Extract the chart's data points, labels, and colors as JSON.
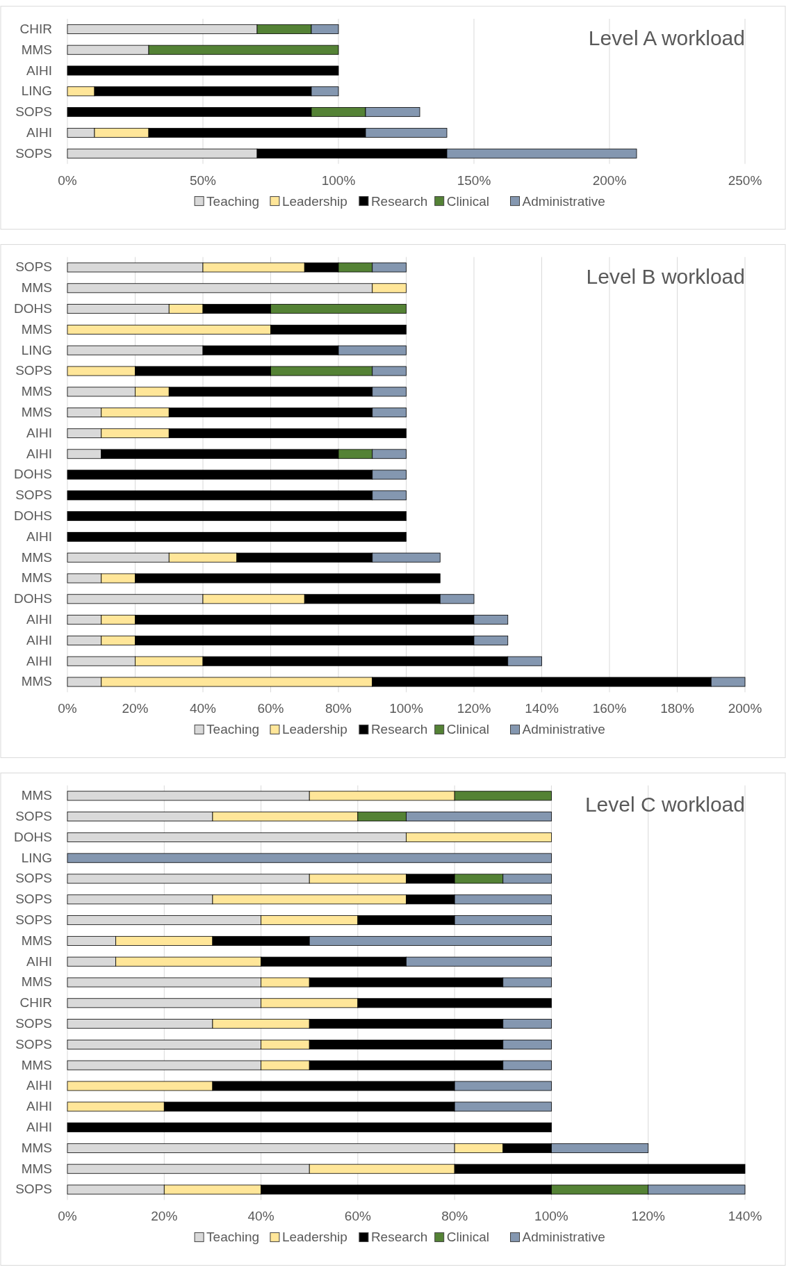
{
  "chart_data": [
    {
      "type": "bar",
      "orientation": "horizontal",
      "stacked": true,
      "title": "Level A workload",
      "categories": [
        "CHIR",
        "MMS",
        "AIHI",
        "LING",
        "SOPS",
        "AIHI",
        "SOPS"
      ],
      "series": [
        {
          "name": "Teaching",
          "color": "#d9d9d9",
          "values": [
            70,
            30,
            0,
            0,
            0,
            10,
            70
          ]
        },
        {
          "name": "Leadership",
          "color": "#ffe699",
          "values": [
            0,
            0,
            0,
            10,
            0,
            20,
            0
          ]
        },
        {
          "name": "Research",
          "color": "#000000",
          "values": [
            0,
            0,
            100,
            80,
            90,
            80,
            70
          ]
        },
        {
          "name": "Clinical",
          "color": "#548235",
          "values": [
            20,
            70,
            0,
            0,
            20,
            0,
            0
          ]
        },
        {
          "name": "Administrative",
          "color": "#8497b0",
          "values": [
            10,
            0,
            0,
            10,
            20,
            30,
            70
          ]
        }
      ],
      "xlim": [
        0,
        250
      ],
      "xticks": [
        {
          "value": 0,
          "label": "0%"
        },
        {
          "value": 50,
          "label": "50%"
        },
        {
          "value": 100,
          "label": "100%"
        },
        {
          "value": 150,
          "label": "150%"
        },
        {
          "value": 200,
          "label": "200%"
        },
        {
          "value": 250,
          "label": "250%"
        }
      ],
      "grid": "x",
      "legend": "bottom"
    },
    {
      "type": "bar",
      "orientation": "horizontal",
      "stacked": true,
      "title": "Level B workload",
      "categories": [
        "SOPS",
        "MMS",
        "DOHS",
        "MMS",
        "LING",
        "SOPS",
        "MMS",
        "MMS",
        "AIHI",
        "AIHI",
        "DOHS",
        "SOPS",
        "DOHS",
        "AIHI",
        "MMS",
        "MMS",
        "DOHS",
        "AIHI",
        "AIHI",
        "AIHI",
        "MMS"
      ],
      "series": [
        {
          "name": "Teaching",
          "color": "#d9d9d9",
          "values": [
            40,
            90,
            30,
            0,
            40,
            0,
            20,
            10,
            10,
            10,
            0,
            0,
            0,
            0,
            30,
            10,
            40,
            10,
            10,
            20,
            10
          ]
        },
        {
          "name": "Leadership",
          "color": "#ffe699",
          "values": [
            30,
            10,
            10,
            60,
            0,
            20,
            10,
            20,
            20,
            0,
            0,
            0,
            0,
            0,
            20,
            10,
            30,
            10,
            10,
            20,
            80
          ]
        },
        {
          "name": "Research",
          "color": "#000000",
          "values": [
            10,
            0,
            20,
            40,
            40,
            40,
            60,
            60,
            70,
            70,
            90,
            90,
            100,
            100,
            40,
            90,
            40,
            100,
            100,
            90,
            100
          ]
        },
        {
          "name": "Clinical",
          "color": "#548235",
          "values": [
            10,
            0,
            40,
            0,
            0,
            30,
            0,
            0,
            0,
            10,
            0,
            0,
            0,
            0,
            0,
            0,
            0,
            0,
            0,
            0,
            0
          ]
        },
        {
          "name": "Administrative",
          "color": "#8497b0",
          "values": [
            10,
            0,
            0,
            0,
            20,
            10,
            10,
            10,
            0,
            10,
            10,
            10,
            0,
            0,
            20,
            0,
            10,
            10,
            10,
            10,
            10
          ]
        }
      ],
      "xlim": [
        0,
        200
      ],
      "xticks": [
        {
          "value": 0,
          "label": "0%"
        },
        {
          "value": 20,
          "label": "20%"
        },
        {
          "value": 40,
          "label": "40%"
        },
        {
          "value": 60,
          "label": "60%"
        },
        {
          "value": 80,
          "label": "80%"
        },
        {
          "value": 100,
          "label": "100%"
        },
        {
          "value": 120,
          "label": "120%"
        },
        {
          "value": 140,
          "label": "140%"
        },
        {
          "value": 160,
          "label": "160%"
        },
        {
          "value": 180,
          "label": "180%"
        },
        {
          "value": 200,
          "label": "200%"
        }
      ],
      "grid": "x",
      "legend": "bottom"
    },
    {
      "type": "bar",
      "orientation": "horizontal",
      "stacked": true,
      "title": "Level C workload",
      "categories": [
        "MMS",
        "SOPS",
        "DOHS",
        "LING",
        "SOPS",
        "SOPS",
        "SOPS",
        "MMS",
        "AIHI",
        "MMS",
        "CHIR",
        "SOPS",
        "SOPS",
        "MMS",
        "AIHI",
        "AIHI",
        "AIHI",
        "MMS",
        "MMS",
        "SOPS"
      ],
      "series": [
        {
          "name": "Teaching",
          "color": "#d9d9d9",
          "values": [
            50,
            30,
            70,
            0,
            50,
            30,
            40,
            10,
            10,
            40,
            40,
            30,
            40,
            40,
            0,
            0,
            0,
            80,
            50,
            20
          ]
        },
        {
          "name": "Leadership",
          "color": "#ffe699",
          "values": [
            30,
            30,
            30,
            0,
            20,
            40,
            20,
            20,
            30,
            10,
            20,
            20,
            10,
            10,
            30,
            20,
            0,
            10,
            30,
            20
          ]
        },
        {
          "name": "Research",
          "color": "#000000",
          "values": [
            0,
            0,
            0,
            0,
            10,
            10,
            20,
            20,
            30,
            40,
            40,
            40,
            40,
            40,
            50,
            60,
            100,
            10,
            60,
            60
          ]
        },
        {
          "name": "Clinical",
          "color": "#548235",
          "values": [
            20,
            10,
            0,
            0,
            10,
            0,
            0,
            0,
            0,
            0,
            0,
            0,
            0,
            0,
            0,
            0,
            0,
            0,
            0,
            20
          ]
        },
        {
          "name": "Administrative",
          "color": "#8497b0",
          "values": [
            0,
            30,
            0,
            100,
            10,
            20,
            20,
            50,
            30,
            10,
            0,
            10,
            10,
            10,
            20,
            20,
            0,
            20,
            0,
            20
          ]
        }
      ],
      "xlim": [
        0,
        140
      ],
      "xticks": [
        {
          "value": 0,
          "label": "0%"
        },
        {
          "value": 20,
          "label": "20%"
        },
        {
          "value": 40,
          "label": "40%"
        },
        {
          "value": 60,
          "label": "60%"
        },
        {
          "value": 80,
          "label": "80%"
        },
        {
          "value": 100,
          "label": "100%"
        },
        {
          "value": 120,
          "label": "120%"
        },
        {
          "value": 140,
          "label": "140%"
        }
      ],
      "grid": "x",
      "legend": "bottom"
    }
  ]
}
